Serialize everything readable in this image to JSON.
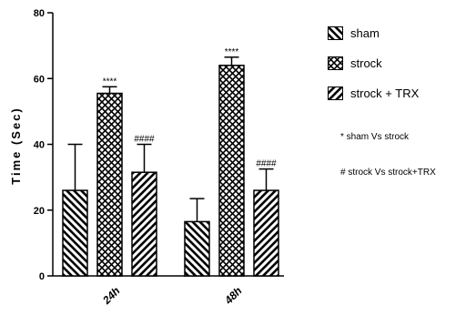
{
  "chart_data": {
    "type": "bar",
    "categories": [
      "24h",
      "48h"
    ],
    "series": [
      {
        "name": "sham",
        "values": [
          26,
          16.5
        ],
        "errors": [
          14,
          7
        ],
        "annotation": [
          "",
          ""
        ],
        "pattern": "hatch-back"
      },
      {
        "name": "strock",
        "values": [
          55.5,
          64
        ],
        "errors": [
          2,
          2.5
        ],
        "annotation": [
          "****",
          "****"
        ],
        "pattern": "crosshatch"
      },
      {
        "name": "strock + TRX",
        "values": [
          31.5,
          26
        ],
        "errors": [
          8.5,
          6.5
        ],
        "annotation": [
          "####",
          "####"
        ],
        "pattern": "hatch-fwd"
      }
    ],
    "ylabel": "Time (Sec)",
    "ylim": [
      0,
      80
    ],
    "yticks": [
      0,
      20,
      40,
      60,
      80
    ],
    "grid": false,
    "legend_position": "right"
  },
  "notes": [
    "* sham Vs strock",
    "# strock Vs strock+TRX"
  ],
  "colors": {
    "ink": "#000000",
    "background": "#ffffff"
  }
}
